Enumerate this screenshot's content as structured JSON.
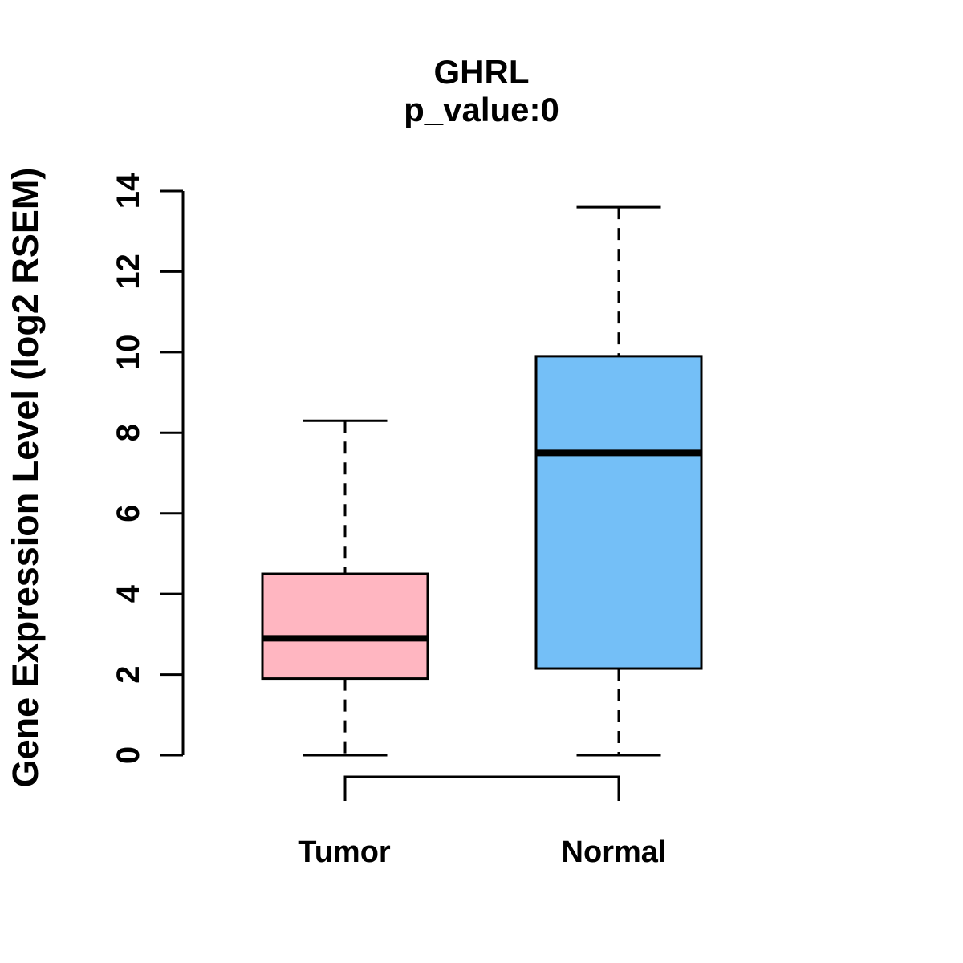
{
  "chart_data": {
    "type": "boxplot",
    "title": "GHRL",
    "subtitle": "p_value:0",
    "ylabel": "Gene Expression Level (log2 RSEM)",
    "xlabel": "",
    "categories": [
      "Tumor",
      "Normal"
    ],
    "ylim": [
      0,
      14
    ],
    "yticks": [
      0,
      2,
      4,
      6,
      8,
      10,
      12,
      14
    ],
    "grid": false,
    "legend": false,
    "series": [
      {
        "name": "Tumor",
        "color": "#FFB6C1",
        "whisker_low": 0,
        "q1": 1.9,
        "median": 2.9,
        "q3": 4.5,
        "whisker_high": 8.3
      },
      {
        "name": "Normal",
        "color": "#74BFF7",
        "whisker_low": 0,
        "q1": 2.15,
        "median": 7.5,
        "q3": 9.9,
        "whisker_high": 13.6
      }
    ],
    "comparison_bracket": {
      "from": "Tumor",
      "to": "Normal"
    },
    "stroke_color": "#000000",
    "background_color": "#ffffff"
  }
}
